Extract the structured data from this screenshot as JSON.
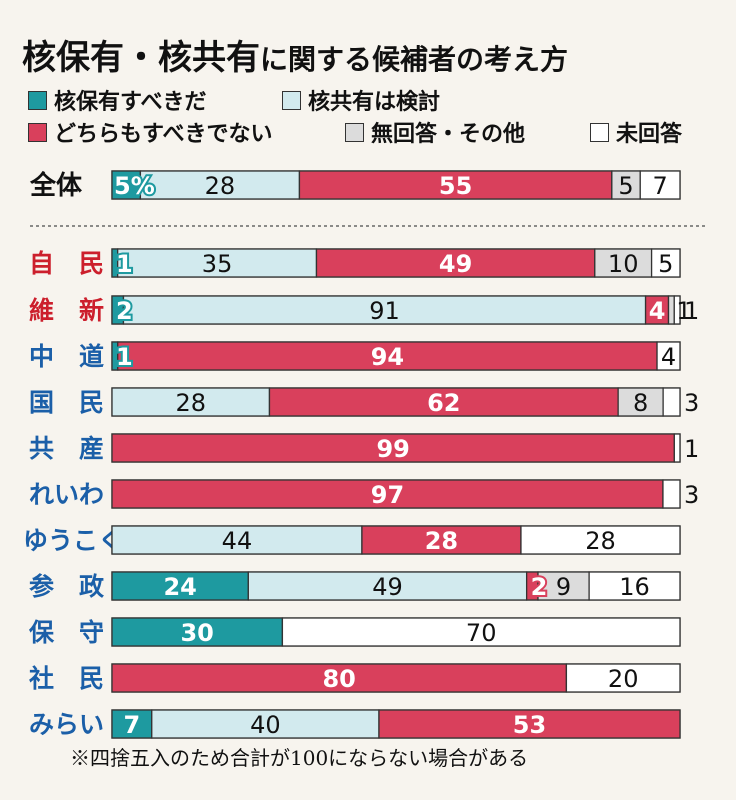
{
  "title": {
    "main": "核保有・核共有",
    "sub": "に関する候補者の考え方"
  },
  "legend": [
    {
      "label": "核保有すべきだ",
      "color": "#1e9aa0"
    },
    {
      "label": "核共有は検討",
      "color": "#d2eaee"
    },
    {
      "label": "どちらもすべきでない",
      "color": "#d9405c"
    },
    {
      "label": "無回答・その他",
      "color": "#dcdcdc"
    },
    {
      "label": "未回答",
      "color": "#ffffff"
    }
  ],
  "chart_data": {
    "type": "bar",
    "stacked": true,
    "orientation": "horizontal",
    "series_names": [
      "核保有すべきだ",
      "核共有は検討",
      "どちらもすべきでない",
      "無回答・その他",
      "未回答"
    ],
    "series_colors": [
      "#1e9aa0",
      "#d2eaee",
      "#d9405c",
      "#dcdcdc",
      "#ffffff"
    ],
    "rows": [
      {
        "label": "全体",
        "label_color": "#111111",
        "values": [
          5,
          28,
          55,
          5,
          7
        ],
        "labels": [
          "5%",
          "28",
          "55",
          "5",
          "7"
        ],
        "overall": true
      },
      {
        "label": "自　民",
        "label_color": "#cc1f2c",
        "values": [
          1,
          35,
          49,
          10,
          5
        ],
        "labels": [
          "1",
          "35",
          "49",
          "10",
          "5"
        ]
      },
      {
        "label": "維　新",
        "label_color": "#cc1f2c",
        "values": [
          2,
          91,
          4,
          1,
          1
        ],
        "labels": [
          "2",
          "91",
          "4",
          "1",
          "1"
        ]
      },
      {
        "label": "中　道",
        "label_color": "#1b5fa8",
        "values": [
          1,
          0,
          94,
          0,
          4
        ],
        "labels": [
          "1",
          "",
          "94",
          "",
          "4"
        ]
      },
      {
        "label": "国　民",
        "label_color": "#1b5fa8",
        "values": [
          0,
          28,
          62,
          8,
          3
        ],
        "labels": [
          "",
          "28",
          "62",
          "8",
          "3"
        ]
      },
      {
        "label": "共　産",
        "label_color": "#1b5fa8",
        "values": [
          0,
          0,
          99,
          0,
          1
        ],
        "labels": [
          "",
          "",
          "99",
          "",
          "1"
        ]
      },
      {
        "label": "れいわ",
        "label_color": "#1b5fa8",
        "values": [
          0,
          0,
          97,
          0,
          3
        ],
        "labels": [
          "",
          "",
          "97",
          "",
          "3"
        ]
      },
      {
        "label": "ゆうこく",
        "label_color": "#1b5fa8",
        "values": [
          0,
          44,
          28,
          0,
          28
        ],
        "labels": [
          "",
          "44",
          "28",
          "",
          "28"
        ]
      },
      {
        "label": "参　政",
        "label_color": "#1b5fa8",
        "values": [
          24,
          49,
          2,
          9,
          16
        ],
        "labels": [
          "24",
          "49",
          "2",
          "9",
          "16"
        ]
      },
      {
        "label": "保　守",
        "label_color": "#1b5fa8",
        "values": [
          30,
          0,
          0,
          0,
          70
        ],
        "labels": [
          "30",
          "",
          "",
          "",
          "70"
        ]
      },
      {
        "label": "社　民",
        "label_color": "#1b5fa8",
        "values": [
          0,
          0,
          80,
          0,
          20
        ],
        "labels": [
          "",
          "",
          "80",
          "",
          "20"
        ]
      },
      {
        "label": "みらい",
        "label_color": "#1b5fa8",
        "values": [
          7,
          40,
          53,
          0,
          0
        ],
        "labels": [
          "7",
          "40",
          "53",
          "",
          ""
        ]
      }
    ]
  },
  "footnote": "※四捨五入のため合計が100にならない場合がある"
}
